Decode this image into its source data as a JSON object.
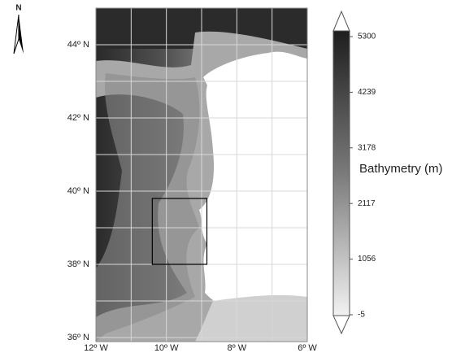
{
  "map": {
    "north_label": "N",
    "lonlim": [
      -12,
      -6
    ],
    "latlim": [
      36,
      45
    ],
    "lon_ticks": [
      {
        "value": -12,
        "label": "12º W"
      },
      {
        "value": -10,
        "label": "10º W"
      },
      {
        "value": -8,
        "label": "8º W"
      },
      {
        "value": -6,
        "label": "6º W"
      }
    ],
    "lat_ticks": [
      {
        "value": 36,
        "label": "36º N"
      },
      {
        "value": 38,
        "label": "38º N"
      },
      {
        "value": 40,
        "label": "40º N"
      },
      {
        "value": 42,
        "label": "42º N"
      },
      {
        "value": 44,
        "label": "44º N"
      }
    ],
    "study_area": {
      "lon": [
        -10.4,
        -8.85
      ],
      "lat": [
        38,
        39.8
      ]
    }
  },
  "colorbar": {
    "label": "Bathymetry (m)",
    "range": [
      -5,
      5300
    ],
    "ticks": [
      5300,
      4239,
      3178,
      2117,
      1056,
      -5
    ]
  }
}
